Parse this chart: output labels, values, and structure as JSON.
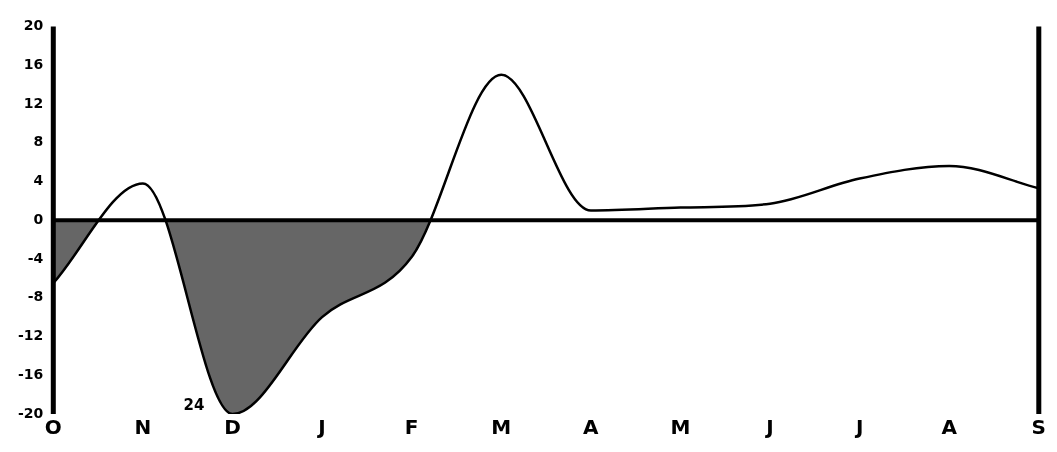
{
  "chart_data": {
    "type": "area",
    "categories": [
      "O",
      "N",
      "D",
      "J",
      "F",
      "M",
      "A",
      "M",
      "J",
      "J",
      "A",
      "S"
    ],
    "series": [
      {
        "color": "#000000",
        "values": [
          -6.5,
          3.8,
          -20,
          -10,
          -3.8,
          15,
          1,
          1.3,
          1.7,
          4.3,
          5.6,
          3.3
        ]
      }
    ],
    "ylim": [
      -20,
      20
    ],
    "yticks": [
      -20,
      -16,
      -12,
      -8,
      -4,
      0,
      4,
      8,
      12,
      16,
      20
    ],
    "grid": false,
    "legend": false,
    "marker": "none",
    "ref_lines": [
      {
        "axis": "y",
        "value": 0,
        "color": "#000000"
      }
    ],
    "annotations": [
      {
        "text": "24",
        "x": "D",
        "y": -20
      }
    ]
  }
}
